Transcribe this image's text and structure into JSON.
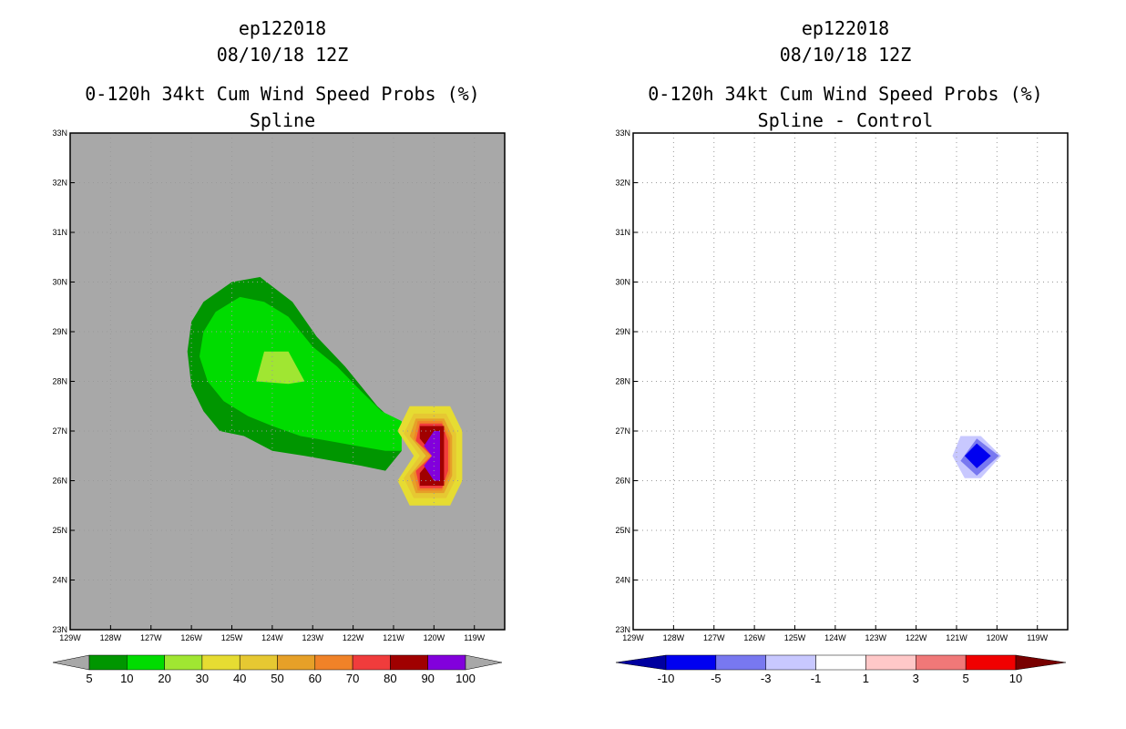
{
  "chart_data": [
    {
      "type": "heatmap",
      "panel": "left",
      "title_lines": [
        "ep122018",
        "08/10/18 12Z"
      ],
      "subtitle_lines": [
        "0-120h 34kt Cum Wind Speed Probs (%)",
        "Spline"
      ],
      "xlabel": "",
      "ylabel": "",
      "xlim": [
        -129,
        -118.25
      ],
      "ylim": [
        23,
        33
      ],
      "x_ticks": [
        -129,
        -128,
        -127,
        -126,
        -125,
        -124,
        -123,
        -122,
        -121,
        -120,
        -119
      ],
      "x_tick_labels": [
        "129W",
        "128W",
        "127W",
        "126W",
        "125W",
        "124W",
        "123W",
        "122W",
        "121W",
        "120W",
        "119W"
      ],
      "y_ticks": [
        23,
        24,
        25,
        26,
        27,
        28,
        29,
        30,
        31,
        32,
        33
      ],
      "y_tick_labels": [
        "23N",
        "24N",
        "25N",
        "26N",
        "27N",
        "28N",
        "29N",
        "30N",
        "31N",
        "32N",
        "33N"
      ],
      "grid": true,
      "background": "#a8a8a8",
      "levels": [
        {
          "min": 5,
          "color": "#009600",
          "polygon": [
            [
              -122.9,
              28.9
            ],
            [
              -123.5,
              29.6
            ],
            [
              -124.3,
              30.1
            ],
            [
              -125.0,
              30.0
            ],
            [
              -125.7,
              29.6
            ],
            [
              -126.0,
              29.2
            ],
            [
              -126.1,
              28.6
            ],
            [
              -126.0,
              27.9
            ],
            [
              -125.7,
              27.4
            ],
            [
              -125.3,
              27.0
            ],
            [
              -124.7,
              26.9
            ],
            [
              -124.0,
              26.6
            ],
            [
              -123.2,
              26.5
            ],
            [
              -122.5,
              26.4
            ],
            [
              -121.8,
              26.3
            ],
            [
              -121.2,
              26.2
            ],
            [
              -120.8,
              26.6
            ],
            [
              -121.0,
              27.2
            ],
            [
              -121.4,
              27.5
            ],
            [
              -121.7,
              27.8
            ],
            [
              -122.2,
              28.3
            ]
          ]
        },
        {
          "min": 10,
          "color": "#00dc00",
          "polygon": [
            [
              -123.0,
              28.7
            ],
            [
              -123.6,
              29.3
            ],
            [
              -124.2,
              29.6
            ],
            [
              -124.8,
              29.7
            ],
            [
              -125.4,
              29.4
            ],
            [
              -125.7,
              29.0
            ],
            [
              -125.8,
              28.5
            ],
            [
              -125.6,
              28.0
            ],
            [
              -125.2,
              27.6
            ],
            [
              -124.6,
              27.3
            ],
            [
              -124.0,
              27.1
            ],
            [
              -123.3,
              26.9
            ],
            [
              -122.6,
              26.8
            ],
            [
              -121.9,
              26.7
            ],
            [
              -121.2,
              26.6
            ],
            [
              -120.8,
              26.6
            ],
            [
              -120.8,
              27.2
            ],
            [
              -121.3,
              27.4
            ],
            [
              -121.8,
              27.8
            ],
            [
              -122.4,
              28.3
            ]
          ]
        },
        {
          "min": 20,
          "color": "#a0e632",
          "polygon": [
            [
              -124.4,
              28.0
            ],
            [
              -124.2,
              28.6
            ],
            [
              -123.6,
              28.6
            ],
            [
              -123.2,
              28.0
            ],
            [
              -123.6,
              27.95
            ]
          ]
        },
        {
          "min": 30,
          "color": "#e6dc32",
          "polygon": [
            [
              -120.6,
              27.5
            ],
            [
              -119.6,
              27.5
            ],
            [
              -119.3,
              27.0
            ],
            [
              -119.3,
              26.0
            ],
            [
              -119.6,
              25.5
            ],
            [
              -120.6,
              25.5
            ],
            [
              -120.9,
              26.0
            ],
            [
              -120.5,
              26.5
            ],
            [
              -120.9,
              27.0
            ]
          ]
        },
        {
          "min": 40,
          "color": "#e6c832",
          "polygon": [
            [
              -120.5,
              27.35
            ],
            [
              -119.7,
              27.35
            ],
            [
              -119.45,
              26.95
            ],
            [
              -119.45,
              26.05
            ],
            [
              -119.7,
              25.65
            ],
            [
              -120.5,
              25.65
            ],
            [
              -120.75,
              26.05
            ],
            [
              -120.35,
              26.5
            ],
            [
              -120.75,
              26.95
            ]
          ]
        },
        {
          "min": 50,
          "color": "#e6a028",
          "polygon": [
            [
              -120.45,
              27.25
            ],
            [
              -119.75,
              27.25
            ],
            [
              -119.55,
              26.9
            ],
            [
              -119.55,
              26.1
            ],
            [
              -119.75,
              25.75
            ],
            [
              -120.45,
              25.75
            ],
            [
              -120.6,
              26.1
            ],
            [
              -120.2,
              26.5
            ],
            [
              -120.6,
              26.9
            ]
          ]
        },
        {
          "min": 60,
          "color": "#f08228",
          "polygon": [
            [
              -120.4,
              27.2
            ],
            [
              -119.8,
              27.2
            ],
            [
              -119.6,
              26.85
            ],
            [
              -119.6,
              26.15
            ],
            [
              -119.8,
              25.8
            ],
            [
              -120.4,
              25.8
            ],
            [
              -120.5,
              26.15
            ],
            [
              -120.1,
              26.5
            ],
            [
              -120.5,
              26.85
            ]
          ]
        },
        {
          "min": 70,
          "color": "#f03c3c",
          "polygon": [
            [
              -120.35,
              27.15
            ],
            [
              -119.8,
              27.15
            ],
            [
              -119.65,
              26.8
            ],
            [
              -119.65,
              26.2
            ],
            [
              -119.8,
              25.85
            ],
            [
              -120.35,
              25.85
            ],
            [
              -120.45,
              26.2
            ],
            [
              -120.05,
              26.5
            ],
            [
              -120.45,
              26.8
            ]
          ]
        },
        {
          "min": 80,
          "color": "#a00000",
          "polygon": [
            [
              -120.35,
              27.1
            ],
            [
              -119.75,
              27.1
            ],
            [
              -119.75,
              25.9
            ],
            [
              -120.35,
              25.9
            ],
            [
              -120.35,
              26.15
            ],
            [
              -120.0,
              26.5
            ],
            [
              -120.35,
              26.85
            ]
          ]
        },
        {
          "min": 90,
          "color": "#8200dc",
          "polygon": [
            [
              -120.0,
              27.0
            ],
            [
              -119.85,
              27.0
            ],
            [
              -119.85,
              26.0
            ],
            [
              -120.0,
              26.0
            ],
            [
              -120.25,
              26.3
            ],
            [
              -120.05,
              26.5
            ],
            [
              -120.25,
              26.7
            ]
          ]
        }
      ],
      "colorbar": {
        "labels": [
          "5",
          "10",
          "20",
          "30",
          "40",
          "50",
          "60",
          "70",
          "80",
          "90",
          "100"
        ],
        "colors": [
          "#009600",
          "#00dc00",
          "#a0e632",
          "#e6dc32",
          "#e6c832",
          "#e6a028",
          "#f08228",
          "#f03c3c",
          "#a00000",
          "#8200dc"
        ],
        "under_color": "#a8a8a8",
        "over_color": "#a8a8a8"
      }
    },
    {
      "type": "heatmap",
      "panel": "right",
      "title_lines": [
        "ep122018",
        "08/10/18 12Z"
      ],
      "subtitle_lines": [
        "0-120h 34kt Cum Wind Speed Probs (%)",
        "Spline - Control"
      ],
      "xlabel": "",
      "ylabel": "",
      "xlim": [
        -129,
        -118.25
      ],
      "ylim": [
        23,
        33
      ],
      "x_ticks": [
        -129,
        -128,
        -127,
        -126,
        -125,
        -124,
        -123,
        -122,
        -121,
        -120,
        -119
      ],
      "x_tick_labels": [
        "129W",
        "128W",
        "127W",
        "126W",
        "125W",
        "124W",
        "123W",
        "122W",
        "121W",
        "120W",
        "119W"
      ],
      "y_ticks": [
        23,
        24,
        25,
        26,
        27,
        28,
        29,
        30,
        31,
        32,
        33
      ],
      "y_tick_labels": [
        "23N",
        "24N",
        "25N",
        "26N",
        "27N",
        "28N",
        "29N",
        "30N",
        "31N",
        "32N",
        "33N"
      ],
      "grid": true,
      "background": "#ffffff",
      "levels": [
        {
          "max": -1,
          "color": "#c8c8ff",
          "polygon": [
            [
              -120.9,
              26.9
            ],
            [
              -120.4,
              26.9
            ],
            [
              -119.9,
              26.5
            ],
            [
              -120.4,
              26.05
            ],
            [
              -120.8,
              26.05
            ],
            [
              -121.1,
              26.5
            ]
          ]
        },
        {
          "max": -3,
          "color": "#7878f0",
          "polygon": [
            [
              -120.5,
              26.85
            ],
            [
              -119.95,
              26.5
            ],
            [
              -120.5,
              26.1
            ],
            [
              -120.9,
              26.4
            ]
          ]
        },
        {
          "max": -5,
          "color": "#0000f0",
          "polygon": [
            [
              -120.5,
              26.75
            ],
            [
              -120.15,
              26.5
            ],
            [
              -120.5,
              26.25
            ],
            [
              -120.8,
              26.5
            ]
          ]
        }
      ],
      "colorbar": {
        "labels": [
          "-10",
          "-5",
          "-3",
          "-1",
          "1",
          "3",
          "5",
          "10"
        ],
        "colors": [
          "#0000f0",
          "#7878f0",
          "#c8c8ff",
          "#ffffff",
          "#ffc8c8",
          "#f07878",
          "#f00000"
        ],
        "under_color": "#0000a0",
        "over_color": "#780000"
      }
    }
  ]
}
